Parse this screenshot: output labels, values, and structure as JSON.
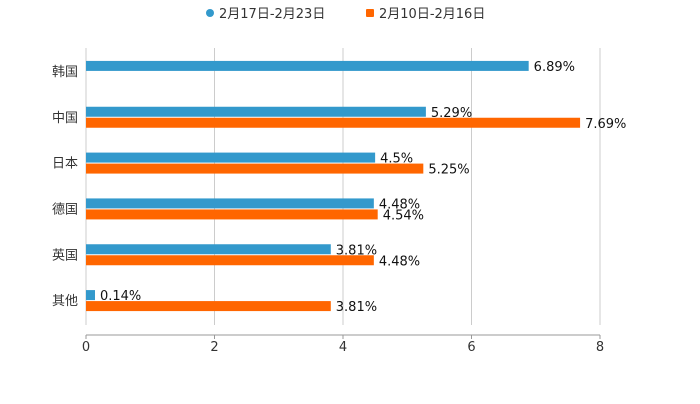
{
  "chart_data": {
    "type": "bar",
    "orientation": "horizontal",
    "categories": [
      "韩国",
      "中国",
      "日本",
      "德国",
      "英国",
      "其他"
    ],
    "series": [
      {
        "name": "2月17日-2月23日",
        "color": "#3399cc",
        "values": [
          6.89,
          5.29,
          4.5,
          4.48,
          3.81,
          0.14
        ],
        "labels": [
          "6.89%",
          "5.29%",
          "4.5%",
          "4.48%",
          "3.81%",
          "0.14%"
        ]
      },
      {
        "name": "2月10日-2月16日",
        "color": "#ff6600",
        "values": [
          null,
          7.69,
          5.25,
          4.54,
          4.48,
          3.81
        ],
        "labels": [
          null,
          "7.69%",
          "5.25%",
          "4.54%",
          "4.48%",
          "3.81%"
        ]
      }
    ],
    "xticks": [
      "0",
      "2",
      "4",
      "6",
      "8"
    ],
    "xlim": [
      0,
      8
    ],
    "grid": true,
    "legend": "top-center",
    "title": "",
    "xlabel": "",
    "ylabel": ""
  }
}
